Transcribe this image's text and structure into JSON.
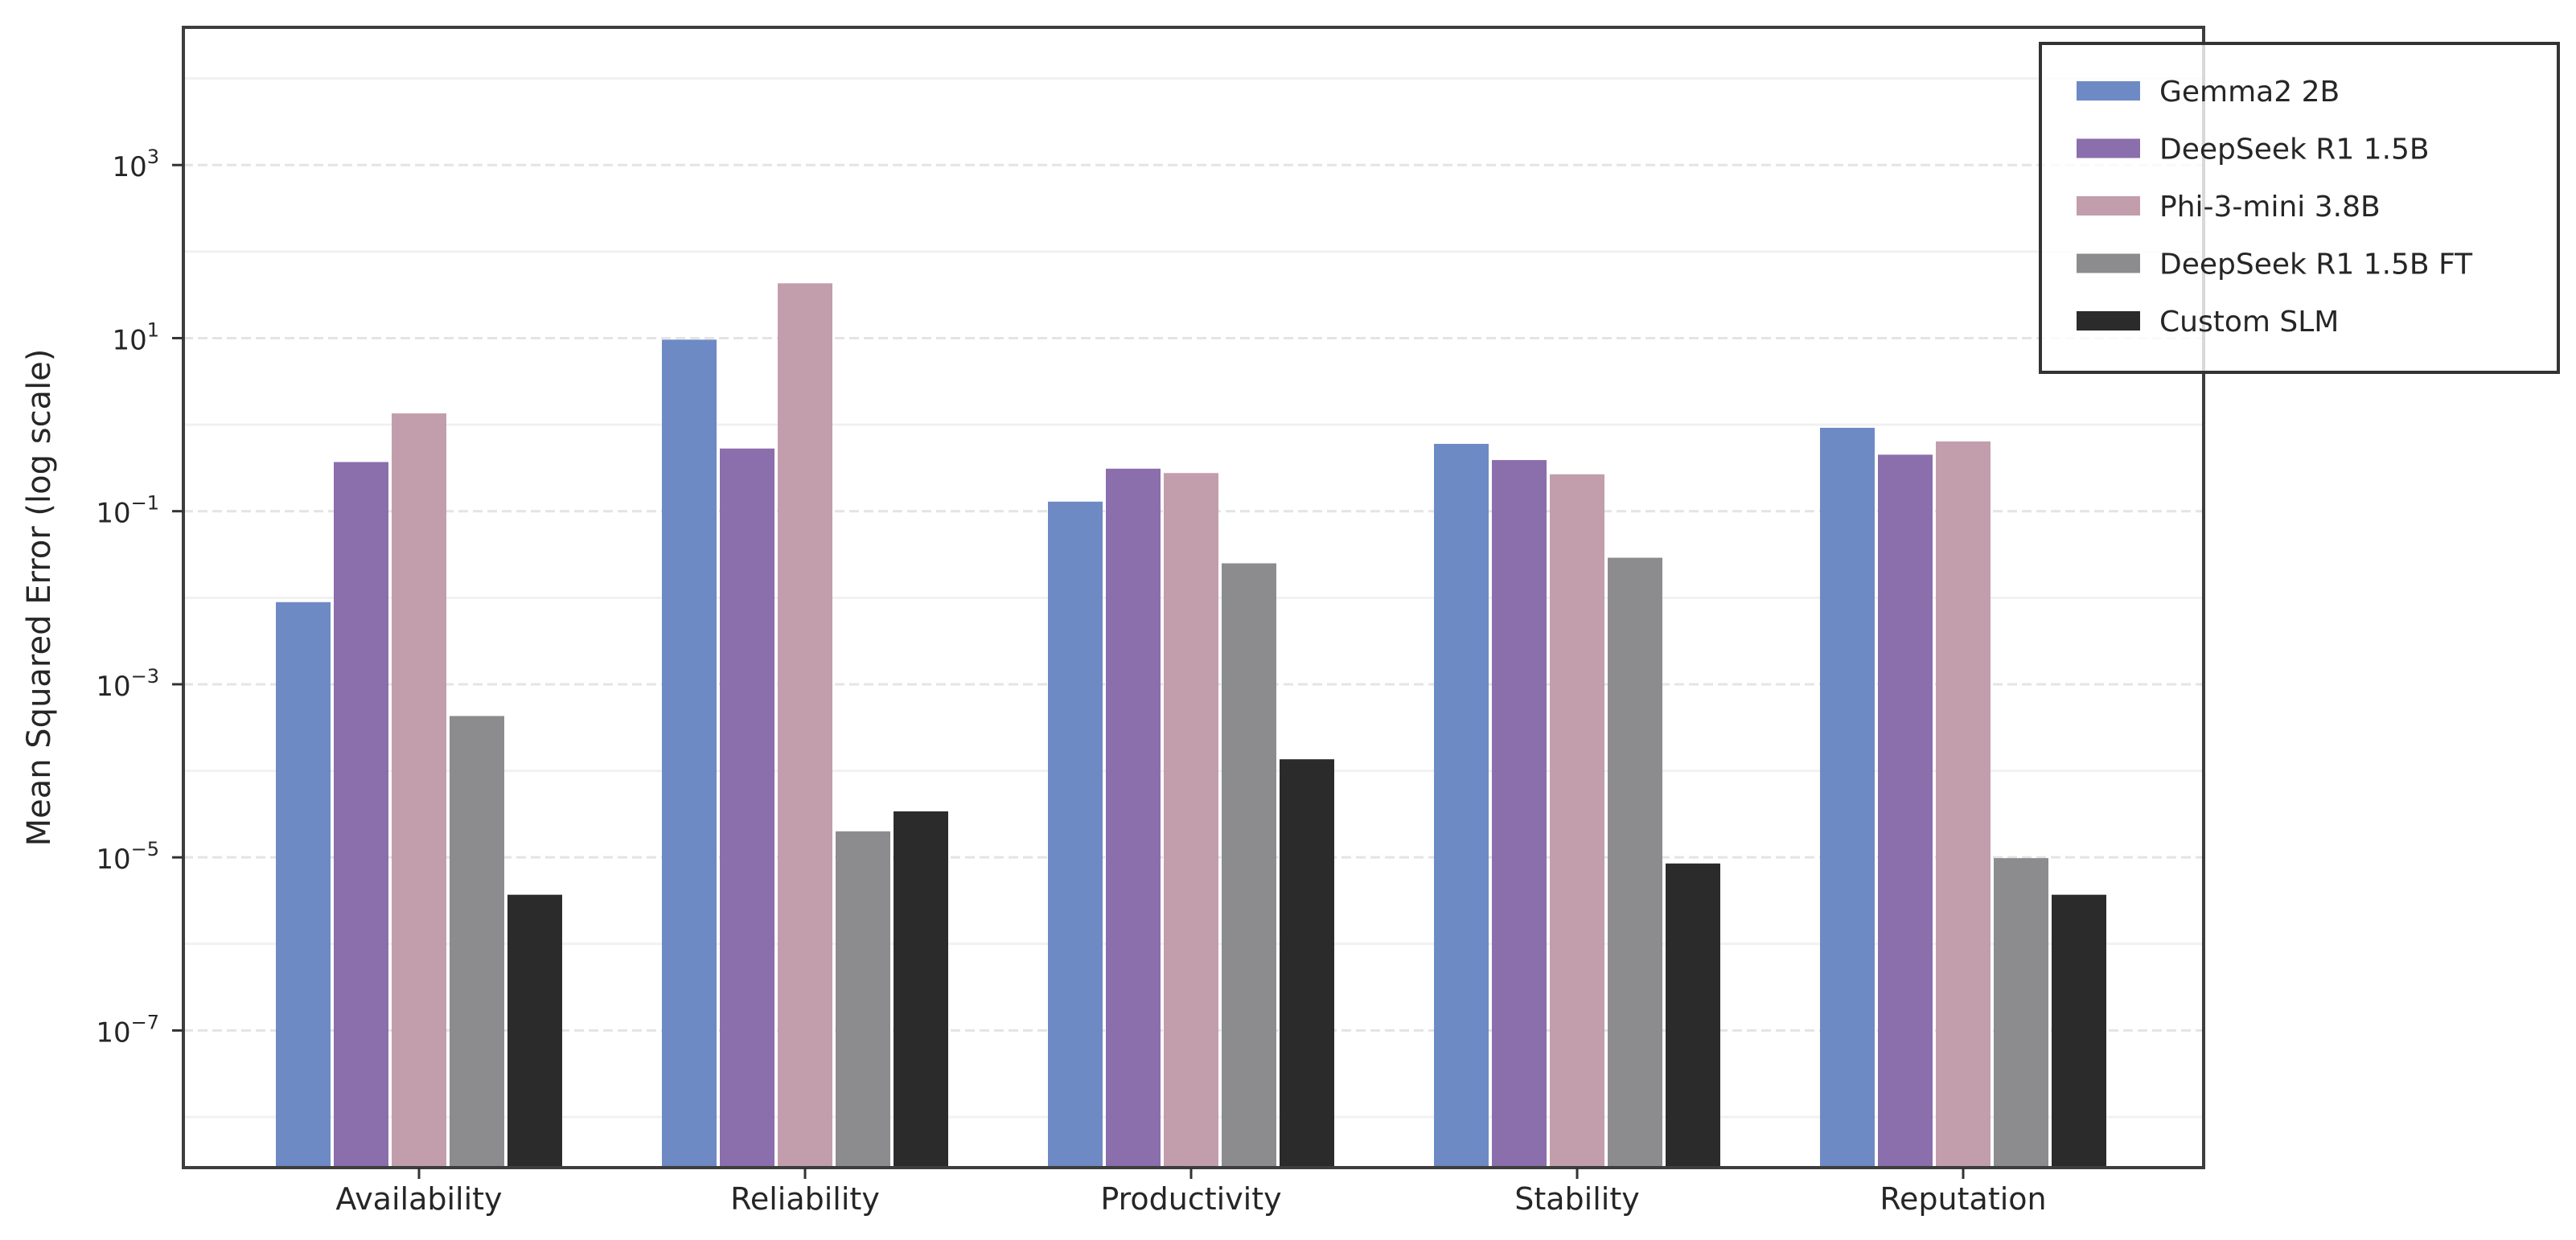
{
  "chart_data": {
    "type": "bar",
    "title": "",
    "xlabel": "",
    "ylabel": "Mean Squared Error (log scale)",
    "yscale": "log",
    "ylim": [
      2.6e-09,
      39000
    ],
    "yticks": [
      1e-07,
      1e-05,
      0.001,
      0.1,
      10,
      1000
    ],
    "ytick_labels": [
      {
        "base": "10",
        "exp": "−7"
      },
      {
        "base": "10",
        "exp": "−5"
      },
      {
        "base": "10",
        "exp": "−3"
      },
      {
        "base": "10",
        "exp": "−1"
      },
      {
        "base": "10",
        "exp": "1"
      },
      {
        "base": "10",
        "exp": "3"
      }
    ],
    "grid": true,
    "legend_position": "top-right",
    "categories": [
      "Availability",
      "Reliability",
      "Productivity",
      "Stability",
      "Reputation"
    ],
    "series": [
      {
        "name": "Gemma2 2B",
        "color": "#6e8ac4",
        "values": [
          0.0089,
          9.6,
          0.129,
          0.6,
          0.92
        ]
      },
      {
        "name": "DeepSeek R1 1.5B",
        "color": "#8b6eac",
        "values": [
          0.37,
          0.53,
          0.31,
          0.39,
          0.45
        ]
      },
      {
        "name": "Phi-3-mini 3.8B",
        "color": "#c29eac",
        "values": [
          1.35,
          43,
          0.276,
          0.267,
          0.64
        ]
      },
      {
        "name": "DeepSeek R1 1.5B FT",
        "color": "#8c8c8e",
        "values": [
          0.00043,
          2e-05,
          0.025,
          0.029,
          9.8e-06
        ]
      },
      {
        "name": "Custom SLM",
        "color": "#2b2b2b",
        "values": [
          3.7e-06,
          3.4e-05,
          0.000136,
          8.5e-06,
          3.7e-06
        ]
      }
    ]
  }
}
